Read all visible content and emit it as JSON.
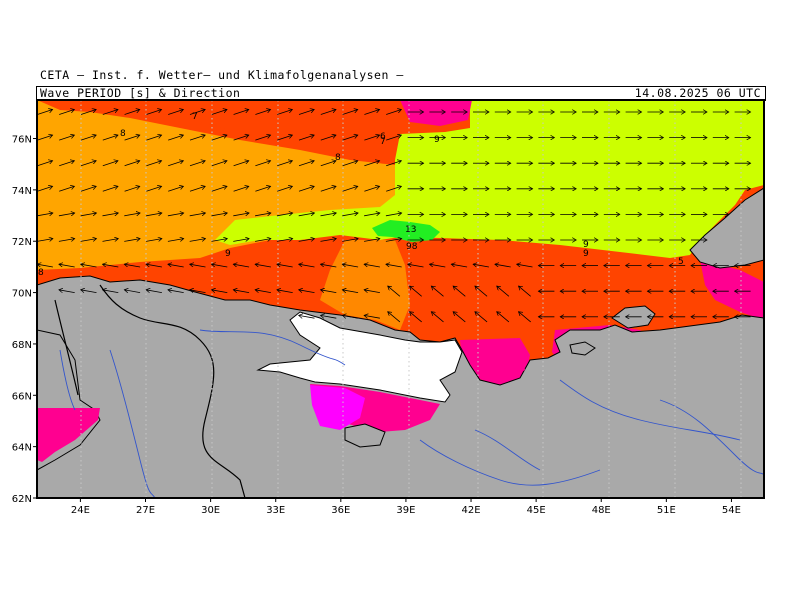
{
  "header": {
    "institute": "CETA – Inst. f. Wetter– und Klimafolgenanalysen –",
    "product": "Wave PERIOD [s] & Direction",
    "datetime": "14.08.2025 06 UTC"
  },
  "map": {
    "lon_range": [
      22,
      55.5
    ],
    "lat_range": [
      62,
      77.5
    ],
    "lat_ticks": [
      {
        "value": 62,
        "label": "62N"
      },
      {
        "value": 64,
        "label": "64N"
      },
      {
        "value": 66,
        "label": "66N"
      },
      {
        "value": 68,
        "label": "68N"
      },
      {
        "value": 70,
        "label": "70N"
      },
      {
        "value": 72,
        "label": "72N"
      },
      {
        "value": 74,
        "label": "74N"
      },
      {
        "value": 76,
        "label": "76N"
      }
    ],
    "lon_ticks": [
      {
        "value": 24,
        "label": "24E"
      },
      {
        "value": 27,
        "label": "27E"
      },
      {
        "value": 30,
        "label": "30E"
      },
      {
        "value": 33,
        "label": "33E"
      },
      {
        "value": 36,
        "label": "36E"
      },
      {
        "value": 39,
        "label": "39E"
      },
      {
        "value": 42,
        "label": "42E"
      },
      {
        "value": 45,
        "label": "45E"
      },
      {
        "value": 48,
        "label": "48E"
      },
      {
        "value": 51,
        "label": "51E"
      },
      {
        "value": 54,
        "label": "54E"
      }
    ],
    "colors": {
      "land": "#a9a9a9",
      "period_5_6": "#ff0090",
      "period_6_7": "#ff00ff",
      "period_7_8": "#ff4400",
      "period_8_9": "#ffa500",
      "period_9_12": "#ccff00",
      "period_12_plus": "#22ee22",
      "rivers": "#3355cc",
      "borders": "#000000"
    },
    "contour_labels": [
      "8",
      "7",
      "6",
      "7",
      "8",
      "9",
      "13",
      "98",
      "9",
      "9",
      "5",
      "8",
      "9"
    ]
  }
}
